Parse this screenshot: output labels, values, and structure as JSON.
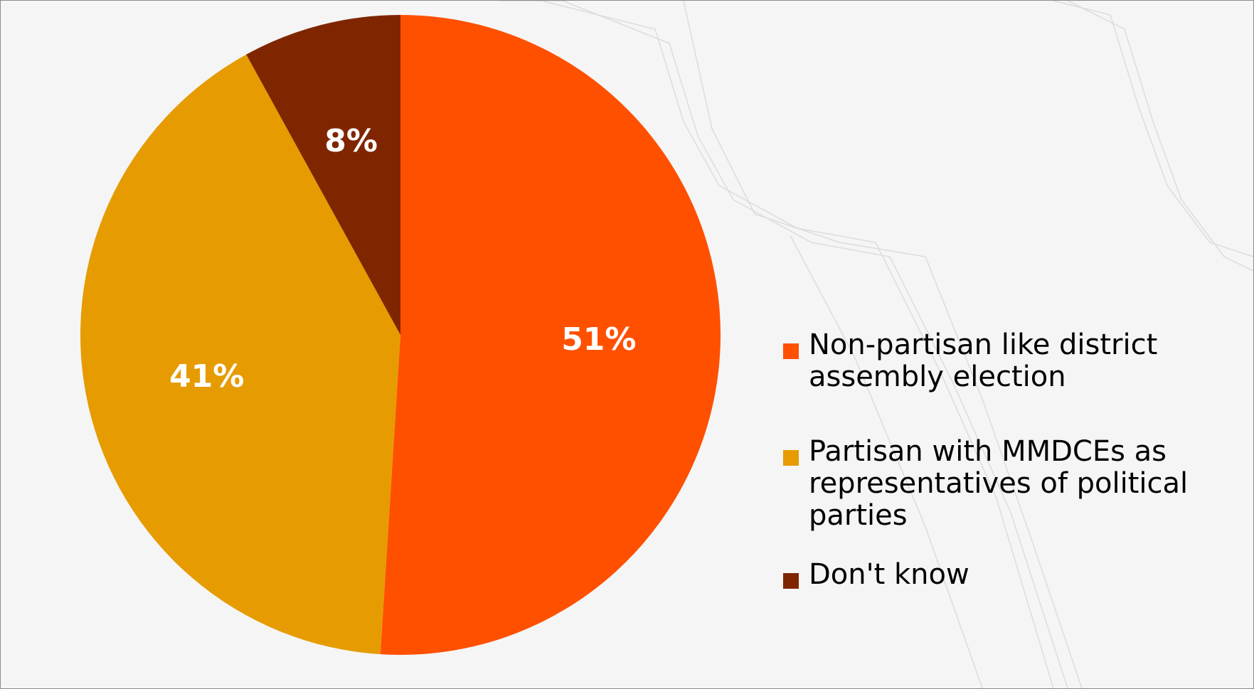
{
  "chart_data": {
    "type": "pie",
    "title": "",
    "slices": [
      {
        "label": "Non-partisan like district assembly election",
        "value": 51,
        "display": "51%",
        "color": "#ff5000"
      },
      {
        "label": "Partisan with MMDCEs as representatives of political parties",
        "value": 41,
        "display": "41%",
        "color": "#e69b00"
      },
      {
        "label": "Don't know",
        "value": 8,
        "display": "8%",
        "color": "#7f2600"
      }
    ],
    "start_angle_deg": 0,
    "direction": "clockwise",
    "legend_position": "right"
  },
  "legend": {
    "items": [
      {
        "label": "Non-partisan like district assembly election",
        "color": "#ff5000"
      },
      {
        "label": "Partisan with MMDCEs as representatives of political parties",
        "color": "#e69b00"
      },
      {
        "label": "Don't know",
        "color": "#7f2600"
      }
    ]
  },
  "colors": {
    "background": "#f5f5f5",
    "border": "#8a8a8a",
    "label_text": "#ffffff"
  }
}
